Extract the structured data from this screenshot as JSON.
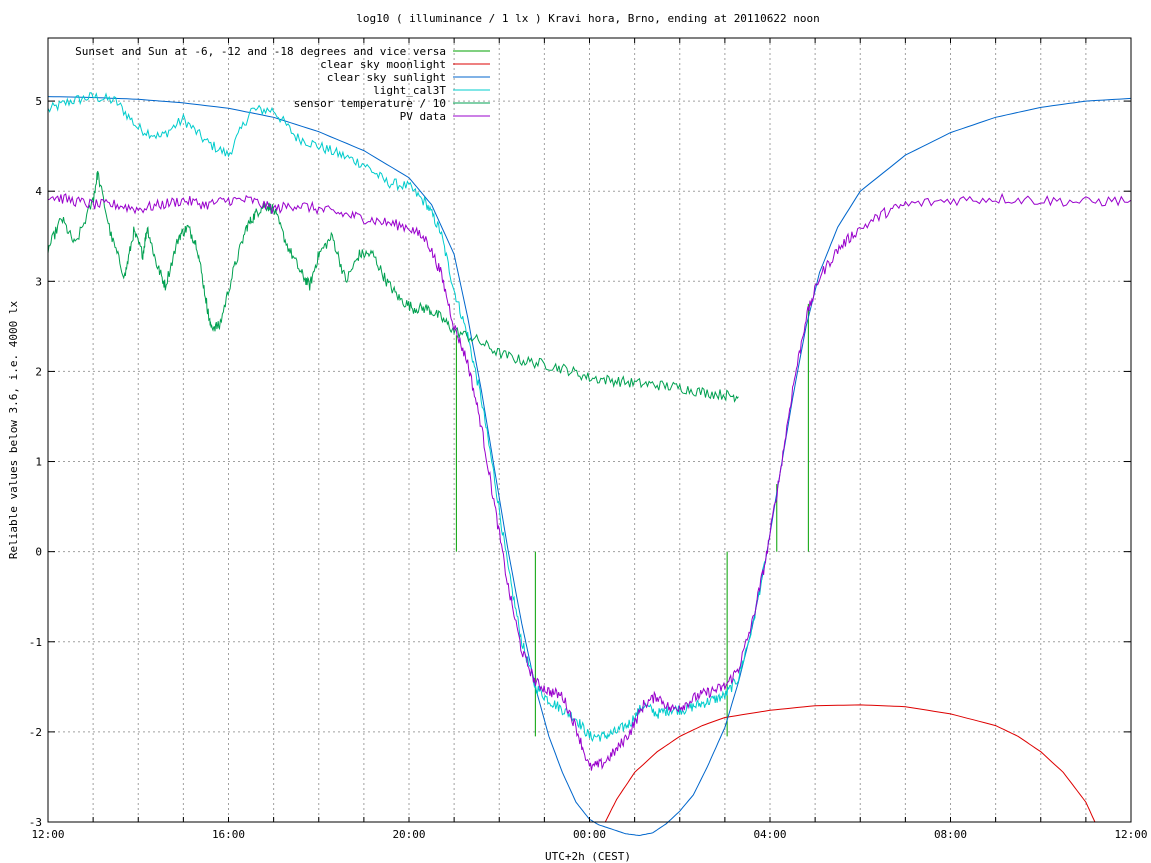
{
  "chart_data": {
    "type": "line",
    "title": "log10 ( illuminance / 1 lx ) Kravi hora, Brno, ending at 20110622 noon",
    "xlabel": "UTC+2h (CEST)",
    "ylabel": "Reliable values below 3.6, i.e. 4000 lx",
    "x_unit": "hours since 2011-06-21 12:00 (UTC+2h)",
    "xlim": [
      0,
      24
    ],
    "ylim": [
      -3,
      5.7
    ],
    "grid": true,
    "legend_position": "top-left",
    "x_ticks": [
      {
        "x": 0,
        "label": "12:00"
      },
      {
        "x": 4,
        "label": "16:00"
      },
      {
        "x": 8,
        "label": "20:00"
      },
      {
        "x": 12,
        "label": "00:00"
      },
      {
        "x": 16,
        "label": "04:00"
      },
      {
        "x": 20,
        "label": "08:00"
      },
      {
        "x": 24,
        "label": "12:00"
      }
    ],
    "x_grid": [
      0,
      1,
      2,
      3,
      4,
      5,
      6,
      7,
      8,
      9,
      10,
      11,
      12,
      13,
      14,
      15,
      16,
      17,
      18,
      19,
      20,
      21,
      22,
      23,
      24
    ],
    "y_ticks": [
      {
        "y": -3,
        "label": "-3"
      },
      {
        "y": -2,
        "label": "-2"
      },
      {
        "y": -1,
        "label": "-1"
      },
      {
        "y": 0,
        "label": "0"
      },
      {
        "y": 1,
        "label": "1"
      },
      {
        "y": 2,
        "label": "2"
      },
      {
        "y": 3,
        "label": "3"
      },
      {
        "y": 4,
        "label": "4"
      },
      {
        "y": 5,
        "label": "5"
      }
    ],
    "series": [
      {
        "name": "Sunset and Sun at -6, -12 and -18 degrees and vice versa",
        "color": "#00a000",
        "style": "impulses",
        "impulses": [
          {
            "x": 9.05,
            "y0": 0,
            "y1": 2.4
          },
          {
            "x": 10.8,
            "y0": 0,
            "y1": -2.05
          },
          {
            "x": 15.05,
            "y0": 0,
            "y1": -2.05
          },
          {
            "x": 16.15,
            "y0": 0,
            "y1": 0.75
          },
          {
            "x": 16.85,
            "y0": 0,
            "y1": 2.75
          }
        ]
      },
      {
        "name": "clear sky moonlight",
        "color": "#dd0000",
        "points": [
          [
            12.35,
            -3.0
          ],
          [
            12.6,
            -2.75
          ],
          [
            13.0,
            -2.45
          ],
          [
            13.5,
            -2.22
          ],
          [
            14.0,
            -2.05
          ],
          [
            14.5,
            -1.93
          ],
          [
            15.0,
            -1.84
          ],
          [
            16.0,
            -1.76
          ],
          [
            17.0,
            -1.71
          ],
          [
            18.0,
            -1.7
          ],
          [
            19.0,
            -1.72
          ],
          [
            20.0,
            -1.8
          ],
          [
            21.0,
            -1.93
          ],
          [
            21.5,
            -2.05
          ],
          [
            22.0,
            -2.22
          ],
          [
            22.5,
            -2.45
          ],
          [
            23.0,
            -2.78
          ],
          [
            23.2,
            -3.0
          ]
        ]
      },
      {
        "name": "clear sky sunlight",
        "color": "#0066cc",
        "points": [
          [
            0,
            5.05
          ],
          [
            1,
            5.04
          ],
          [
            2,
            5.02
          ],
          [
            3,
            4.98
          ],
          [
            4,
            4.92
          ],
          [
            5,
            4.82
          ],
          [
            6,
            4.66
          ],
          [
            7,
            4.45
          ],
          [
            8,
            4.15
          ],
          [
            8.5,
            3.85
          ],
          [
            9.0,
            3.3
          ],
          [
            9.3,
            2.6
          ],
          [
            9.6,
            1.8
          ],
          [
            9.9,
            0.9
          ],
          [
            10.2,
            0.0
          ],
          [
            10.5,
            -0.8
          ],
          [
            10.8,
            -1.5
          ],
          [
            11.1,
            -2.05
          ],
          [
            11.4,
            -2.45
          ],
          [
            11.7,
            -2.78
          ],
          [
            12.0,
            -2.97
          ],
          [
            12.2,
            -3.03
          ],
          [
            12.5,
            -3.08
          ],
          [
            12.8,
            -3.13
          ],
          [
            13.1,
            -3.15
          ],
          [
            13.4,
            -3.12
          ],
          [
            13.7,
            -3.02
          ],
          [
            14.0,
            -2.88
          ],
          [
            14.3,
            -2.7
          ],
          [
            14.6,
            -2.4
          ],
          [
            15.0,
            -1.95
          ],
          [
            15.3,
            -1.45
          ],
          [
            15.6,
            -0.85
          ],
          [
            15.9,
            -0.1
          ],
          [
            16.2,
            0.8
          ],
          [
            16.5,
            1.7
          ],
          [
            16.8,
            2.5
          ],
          [
            17.1,
            3.1
          ],
          [
            17.5,
            3.6
          ],
          [
            18,
            4.0
          ],
          [
            19,
            4.4
          ],
          [
            20,
            4.65
          ],
          [
            21,
            4.82
          ],
          [
            22,
            4.93
          ],
          [
            23,
            5.0
          ],
          [
            24,
            5.03
          ]
        ]
      },
      {
        "name": "light_cal3T",
        "color": "#00cccc",
        "noisy": true,
        "points": [
          [
            0,
            4.9
          ],
          [
            0.5,
            5.0
          ],
          [
            1,
            5.05
          ],
          [
            1.5,
            5.0
          ],
          [
            2,
            4.7
          ],
          [
            2.5,
            4.6
          ],
          [
            3,
            4.8
          ],
          [
            3.5,
            4.55
          ],
          [
            4,
            4.4
          ],
          [
            4.5,
            4.9
          ],
          [
            5,
            4.9
          ],
          [
            5.5,
            4.6
          ],
          [
            6,
            4.5
          ],
          [
            6.5,
            4.4
          ],
          [
            7,
            4.3
          ],
          [
            7.5,
            4.1
          ],
          [
            8,
            4.05
          ],
          [
            8.4,
            3.85
          ],
          [
            8.7,
            3.55
          ],
          [
            9.0,
            2.9
          ],
          [
            9.3,
            2.4
          ],
          [
            9.6,
            1.7
          ],
          [
            9.9,
            0.8
          ],
          [
            10.2,
            -0.2
          ],
          [
            10.5,
            -1.0
          ],
          [
            10.8,
            -1.5
          ],
          [
            11.1,
            -1.65
          ],
          [
            11.4,
            -1.75
          ],
          [
            11.7,
            -1.85
          ],
          [
            12.0,
            -2.05
          ],
          [
            12.3,
            -2.05
          ],
          [
            12.6,
            -2.0
          ],
          [
            12.9,
            -1.9
          ],
          [
            13.2,
            -1.7
          ],
          [
            13.5,
            -1.8
          ],
          [
            13.8,
            -1.75
          ],
          [
            14.1,
            -1.75
          ],
          [
            14.4,
            -1.7
          ],
          [
            14.7,
            -1.65
          ],
          [
            15.0,
            -1.6
          ],
          [
            15.3,
            -1.4
          ],
          [
            15.6,
            -0.85
          ],
          [
            15.9,
            -0.1
          ]
        ]
      },
      {
        "name": "sensor temperature / 10",
        "color": "#00a050",
        "noisy": true,
        "points": [
          [
            0,
            3.35
          ],
          [
            0.3,
            3.7
          ],
          [
            0.6,
            3.4
          ],
          [
            1,
            3.9
          ],
          [
            1.1,
            4.2
          ],
          [
            1.4,
            3.5
          ],
          [
            1.7,
            3.05
          ],
          [
            1.9,
            3.55
          ],
          [
            2.1,
            3.3
          ],
          [
            2.2,
            3.6
          ],
          [
            2.4,
            3.2
          ],
          [
            2.6,
            2.95
          ],
          [
            2.9,
            3.5
          ],
          [
            3.1,
            3.6
          ],
          [
            3.3,
            3.4
          ],
          [
            3.5,
            2.8
          ],
          [
            3.6,
            2.5
          ],
          [
            3.8,
            2.5
          ],
          [
            4.1,
            3.1
          ],
          [
            4.4,
            3.6
          ],
          [
            4.6,
            3.75
          ],
          [
            4.8,
            3.85
          ],
          [
            5.0,
            3.8
          ],
          [
            5.3,
            3.4
          ],
          [
            5.6,
            3.1
          ],
          [
            5.8,
            2.95
          ],
          [
            6.0,
            3.3
          ],
          [
            6.3,
            3.5
          ],
          [
            6.6,
            3.0
          ],
          [
            6.9,
            3.3
          ],
          [
            7.2,
            3.3
          ],
          [
            7.5,
            3.0
          ],
          [
            7.8,
            2.8
          ],
          [
            8.1,
            2.7
          ],
          [
            8.4,
            2.7
          ],
          [
            8.7,
            2.6
          ],
          [
            9.0,
            2.45
          ],
          [
            9.5,
            2.35
          ],
          [
            10.0,
            2.2
          ],
          [
            10.5,
            2.12
          ],
          [
            11.0,
            2.08
          ],
          [
            11.5,
            2.02
          ],
          [
            12.0,
            1.93
          ],
          [
            12.5,
            1.9
          ],
          [
            13.0,
            1.87
          ],
          [
            13.5,
            1.85
          ],
          [
            14.0,
            1.82
          ],
          [
            14.5,
            1.77
          ],
          [
            15.0,
            1.74
          ],
          [
            15.3,
            1.72
          ]
        ]
      },
      {
        "name": "PV data",
        "color": "#9900cc",
        "noisy": true,
        "points": [
          [
            0,
            3.95
          ],
          [
            0.5,
            3.9
          ],
          [
            1,
            3.85
          ],
          [
            1.5,
            3.85
          ],
          [
            2,
            3.8
          ],
          [
            2.5,
            3.85
          ],
          [
            3,
            3.9
          ],
          [
            3.5,
            3.85
          ],
          [
            4,
            3.9
          ],
          [
            4.5,
            3.9
          ],
          [
            5,
            3.8
          ],
          [
            5.5,
            3.85
          ],
          [
            6,
            3.8
          ],
          [
            6.5,
            3.75
          ],
          [
            7,
            3.7
          ],
          [
            7.5,
            3.65
          ],
          [
            8,
            3.6
          ],
          [
            8.4,
            3.45
          ],
          [
            8.7,
            3.1
          ],
          [
            9.0,
            2.5
          ],
          [
            9.3,
            2.1
          ],
          [
            9.6,
            1.4
          ],
          [
            9.9,
            0.5
          ],
          [
            10.2,
            -0.4
          ],
          [
            10.5,
            -1.1
          ],
          [
            10.8,
            -1.45
          ],
          [
            11.1,
            -1.55
          ],
          [
            11.4,
            -1.6
          ],
          [
            11.7,
            -1.95
          ],
          [
            12.0,
            -2.4
          ],
          [
            12.3,
            -2.35
          ],
          [
            12.6,
            -2.2
          ],
          [
            12.9,
            -2.0
          ],
          [
            13.2,
            -1.7
          ],
          [
            13.5,
            -1.6
          ],
          [
            13.8,
            -1.75
          ],
          [
            14.1,
            -1.7
          ],
          [
            14.4,
            -1.6
          ],
          [
            14.7,
            -1.55
          ],
          [
            15.0,
            -1.5
          ],
          [
            15.3,
            -1.3
          ],
          [
            15.6,
            -0.8
          ],
          [
            15.9,
            -0.1
          ],
          [
            16.2,
            0.8
          ],
          [
            16.5,
            1.8
          ],
          [
            16.8,
            2.6
          ],
          [
            17.1,
            3.05
          ],
          [
            17.5,
            3.35
          ],
          [
            17.9,
            3.55
          ],
          [
            18.5,
            3.75
          ],
          [
            19,
            3.85
          ],
          [
            20,
            3.9
          ],
          [
            21,
            3.92
          ],
          [
            22,
            3.9
          ],
          [
            23,
            3.88
          ],
          [
            24,
            3.9
          ]
        ]
      }
    ]
  }
}
